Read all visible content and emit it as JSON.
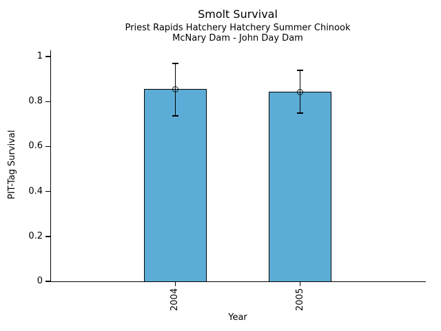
{
  "chart_data": {
    "type": "bar",
    "title": "Smolt Survival",
    "subtitle": [
      "Priest Rapids Hatchery Hatchery Summer Chinook",
      "McNary Dam - John Day Dam"
    ],
    "categories": [
      "2004",
      "2005"
    ],
    "values": [
      0.856,
      0.843
    ],
    "error_low": [
      0.736,
      0.748
    ],
    "error_high": [
      0.969,
      0.939
    ],
    "xlabel": "Year",
    "ylabel": "PIT-Tag Survival",
    "ylim": [
      0,
      1.028
    ],
    "yticks": [
      0,
      0.2,
      0.4,
      0.6,
      0.8,
      1
    ],
    "ytick_labels": [
      "0",
      "0.2",
      "0.4",
      "0.6",
      "0.8",
      "1"
    ],
    "grid": false,
    "legend": false,
    "marker": "open-circle",
    "colors": {
      "bar_fill": "#5BACD6",
      "bar_edge": "#000000",
      "errorbar": "#000000",
      "text": "#000000",
      "background": "#ffffff"
    }
  }
}
